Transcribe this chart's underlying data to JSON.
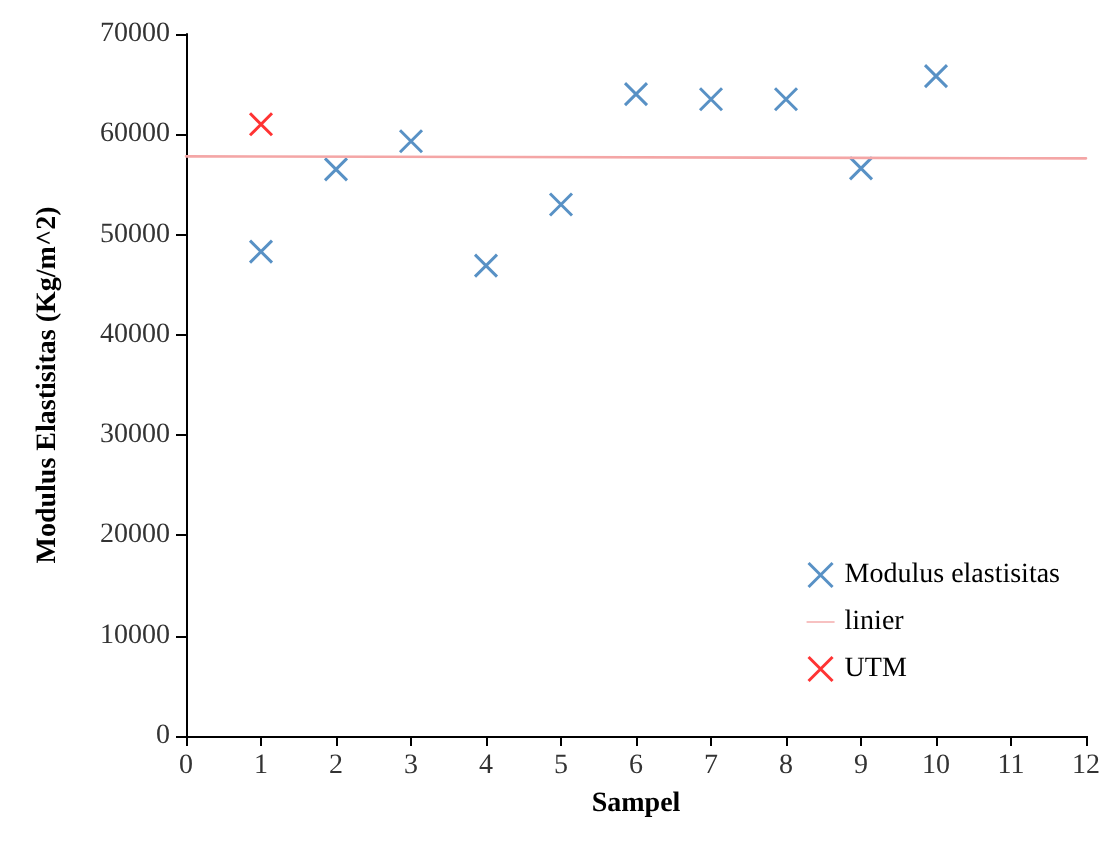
{
  "chart_data": {
    "type": "scatter",
    "xlabel": "Sampel",
    "ylabel": "Modulus Elastisitas (Kg/m^2)",
    "xlim": [
      0,
      12
    ],
    "xticks": [
      0,
      1,
      2,
      3,
      4,
      5,
      6,
      7,
      8,
      9,
      10,
      11,
      12
    ],
    "ylim": [
      0,
      70000
    ],
    "yticks": [
      0,
      10000,
      20000,
      30000,
      40000,
      50000,
      60000,
      70000
    ],
    "grid": false,
    "legend": "bottom right",
    "marker": "cross",
    "series": [
      {
        "name": "Modulus elastisitas",
        "color": "#2e75b6",
        "x": [
          1,
          2,
          3,
          4,
          5,
          6,
          7,
          8,
          9,
          10
        ],
        "values": [
          48300,
          56500,
          59300,
          46900,
          53000,
          64000,
          63500,
          63500,
          56600,
          65800
        ]
      },
      {
        "name": "linier",
        "type": "line",
        "marker": "none",
        "color": "#f4a6a6",
        "x": [
          0,
          12
        ],
        "values": [
          57800,
          57600
        ],
        "line_style": "solid"
      },
      {
        "name": "UTM",
        "color": "#ff0000",
        "x": [
          1
        ],
        "values": [
          61000
        ]
      }
    ]
  }
}
